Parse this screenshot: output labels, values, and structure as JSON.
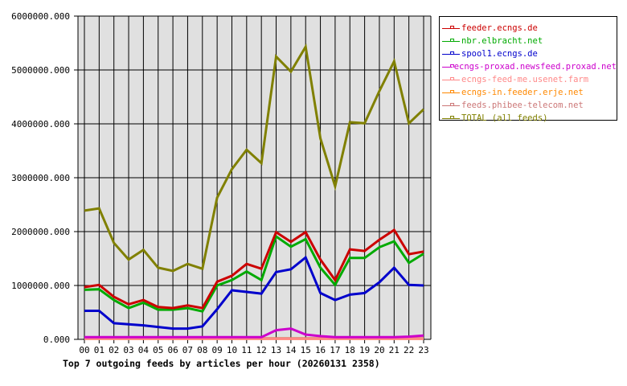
{
  "chart_data": {
    "type": "line",
    "title": "Top 7 outgoing feeds by articles per hour (20260131 2358)",
    "xlabel": "",
    "ylabel": "",
    "ylim": [
      0,
      6000000
    ],
    "grid": true,
    "legend_position": "right",
    "y_ticks": [
      "0.000",
      "1000000.000",
      "2000000.000",
      "3000000.000",
      "4000000.000",
      "5000000.000",
      "6000000.000"
    ],
    "categories": [
      "00",
      "01",
      "02",
      "03",
      "04",
      "05",
      "06",
      "07",
      "08",
      "09",
      "10",
      "11",
      "12",
      "13",
      "14",
      "15",
      "16",
      "17",
      "18",
      "19",
      "20",
      "21",
      "22",
      "23"
    ],
    "series": [
      {
        "name": "feeder.ecngs.de",
        "color": "#cc0000",
        "values": [
          970000,
          1010000,
          790000,
          650000,
          730000,
          600000,
          580000,
          630000,
          580000,
          1070000,
          1180000,
          1400000,
          1310000,
          1990000,
          1810000,
          1990000,
          1480000,
          1100000,
          1670000,
          1640000,
          1850000,
          2030000,
          1580000,
          1630000
        ]
      },
      {
        "name": "nbr.elbracht.net",
        "color": "#00aa00",
        "values": [
          920000,
          930000,
          730000,
          580000,
          680000,
          550000,
          550000,
          580000,
          520000,
          1000000,
          1100000,
          1260000,
          1100000,
          1910000,
          1720000,
          1860000,
          1330000,
          1010000,
          1510000,
          1510000,
          1710000,
          1820000,
          1420000,
          1590000
        ]
      },
      {
        "name": "spool1.ecngs.de",
        "color": "#0000cc",
        "values": [
          530000,
          530000,
          300000,
          280000,
          260000,
          230000,
          200000,
          200000,
          240000,
          560000,
          910000,
          880000,
          850000,
          1250000,
          1300000,
          1520000,
          860000,
          730000,
          830000,
          860000,
          1060000,
          1330000,
          1010000,
          1000000
        ]
      },
      {
        "name": "ecngs-proxad.newsfeed.proxad.net",
        "color": "#cc00cc",
        "values": [
          40000,
          40000,
          40000,
          40000,
          40000,
          40000,
          40000,
          40000,
          40000,
          40000,
          40000,
          40000,
          40000,
          170000,
          200000,
          90000,
          60000,
          40000,
          40000,
          40000,
          40000,
          40000,
          50000,
          70000
        ]
      },
      {
        "name": "ecngs-feed-me.usenet.farm",
        "color": "#ff8888",
        "values": [
          10000,
          10000,
          10000,
          10000,
          10000,
          10000,
          10000,
          10000,
          10000,
          10000,
          10000,
          10000,
          10000,
          10000,
          10000,
          10000,
          10000,
          10000,
          10000,
          10000,
          10000,
          10000,
          10000,
          10000
        ]
      },
      {
        "name": "ecngs-in.feeder.erje.net",
        "color": "#ff8800",
        "values": [
          10000,
          10000,
          10000,
          10000,
          10000,
          10000,
          10000,
          10000,
          10000,
          10000,
          10000,
          10000,
          10000,
          10000,
          10000,
          10000,
          10000,
          10000,
          10000,
          10000,
          10000,
          10000,
          10000,
          10000
        ]
      },
      {
        "name": "feeds.phibee-telecom.net",
        "color": "#cc7777",
        "values": [
          20000,
          20000,
          20000,
          20000,
          20000,
          20000,
          20000,
          20000,
          20000,
          20000,
          20000,
          20000,
          20000,
          20000,
          20000,
          20000,
          20000,
          20000,
          20000,
          20000,
          20000,
          20000,
          20000,
          20000
        ]
      },
      {
        "name": "TOTAL (all feeds)",
        "color": "#808000",
        "values": [
          2390000,
          2430000,
          1790000,
          1480000,
          1660000,
          1330000,
          1270000,
          1400000,
          1310000,
          2630000,
          3160000,
          3520000,
          3270000,
          5250000,
          4970000,
          5430000,
          3730000,
          2840000,
          4030000,
          4010000,
          4610000,
          5160000,
          4010000,
          4270000
        ]
      }
    ]
  },
  "caption": "Top 7 outgoing feeds by articles per hour (20260131 2358)",
  "legend": {
    "items": [
      {
        "label": "feeder.ecngs.de",
        "color": "#cc0000"
      },
      {
        "label": "nbr.elbracht.net",
        "color": "#00aa00"
      },
      {
        "label": "spool1.ecngs.de",
        "color": "#0000cc"
      },
      {
        "label": "ecngs-proxad.newsfeed.proxad.net",
        "color": "#cc00cc"
      },
      {
        "label": "ecngs-feed-me.usenet.farm",
        "color": "#ff8888"
      },
      {
        "label": "ecngs-in.feeder.erje.net",
        "color": "#ff8800"
      },
      {
        "label": "feeds.phibee-telecom.net",
        "color": "#cc7777"
      },
      {
        "label": "TOTAL (all feeds)",
        "color": "#808000"
      }
    ]
  },
  "style": {
    "plot_background": "#e0e0e0",
    "grid_color": "#000000"
  }
}
